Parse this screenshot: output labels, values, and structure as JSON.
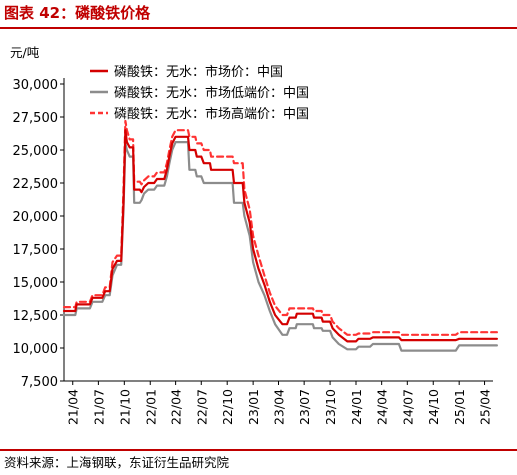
{
  "figure": {
    "title": "图表 42：磷酸铁价格",
    "source": "资料来源：上海钢联，东证衍生品研究院"
  },
  "chart_data": {
    "type": "line",
    "title": "",
    "ylabel": "元/吨",
    "xlabel": "",
    "ylim": [
      7500,
      30000
    ],
    "yticks": [
      7500,
      10000,
      12500,
      15000,
      17500,
      20000,
      22500,
      25000,
      27500,
      30000
    ],
    "ytick_labels": [
      "7,500",
      "10,000",
      "12,500",
      "15,000",
      "17,500",
      "20,000",
      "22,500",
      "25,000",
      "27,500",
      "30,000"
    ],
    "xticks": [
      "21/04",
      "21/07",
      "21/10",
      "22/01",
      "22/04",
      "22/07",
      "22/10",
      "23/01",
      "23/04",
      "23/07",
      "23/10",
      "24/01",
      "24/04",
      "24/07",
      "24/10",
      "25/01",
      "25/04"
    ],
    "x_start": "21/03",
    "x_end": "25/05",
    "legend_position": "top",
    "grid": false,
    "colors": {
      "main": "#d40000",
      "low": "#8c8c8c",
      "high": "#ff3333",
      "title": "#c00000"
    },
    "series": [
      {
        "name": "磷酸铁：无水：市场价：中国",
        "style": "solid",
        "color": "#d40000",
        "points": [
          [
            "2021-03-01",
            12800
          ],
          [
            "2021-04-10",
            12800
          ],
          [
            "2021-04-15",
            13300
          ],
          [
            "2021-06-01",
            13300
          ],
          [
            "2021-06-10",
            13800
          ],
          [
            "2021-07-15",
            13800
          ],
          [
            "2021-07-25",
            14300
          ],
          [
            "2021-08-10",
            14300
          ],
          [
            "2021-08-20",
            16000
          ],
          [
            "2021-09-05",
            16600
          ],
          [
            "2021-09-20",
            16600
          ],
          [
            "2021-09-28",
            21000
          ],
          [
            "2021-10-05",
            26500
          ],
          [
            "2021-10-10",
            25600
          ],
          [
            "2021-10-20",
            25200
          ],
          [
            "2021-11-01",
            25200
          ],
          [
            "2021-11-05",
            22000
          ],
          [
            "2021-11-25",
            22000
          ],
          [
            "2021-12-01",
            21800
          ],
          [
            "2021-12-10",
            22200
          ],
          [
            "2021-12-25",
            22500
          ],
          [
            "2022-01-15",
            22500
          ],
          [
            "2022-01-25",
            22800
          ],
          [
            "2022-02-20",
            22800
          ],
          [
            "2022-03-01",
            23500
          ],
          [
            "2022-03-10",
            24500
          ],
          [
            "2022-03-20",
            25500
          ],
          [
            "2022-04-01",
            26000
          ],
          [
            "2022-05-15",
            26000
          ],
          [
            "2022-05-20",
            25000
          ],
          [
            "2022-06-10",
            25000
          ],
          [
            "2022-06-15",
            24500
          ],
          [
            "2022-07-01",
            24500
          ],
          [
            "2022-07-10",
            24000
          ],
          [
            "2022-08-01",
            24000
          ],
          [
            "2022-08-05",
            23500
          ],
          [
            "2022-10-20",
            23500
          ],
          [
            "2022-10-25",
            22500
          ],
          [
            "2022-11-25",
            22500
          ],
          [
            "2022-12-01",
            21000
          ],
          [
            "2022-12-20",
            19500
          ],
          [
            "2023-01-01",
            17500
          ],
          [
            "2023-01-20",
            16000
          ],
          [
            "2023-02-10",
            14800
          ],
          [
            "2023-03-01",
            13500
          ],
          [
            "2023-03-20",
            12500
          ],
          [
            "2023-04-15",
            11800
          ],
          [
            "2023-05-01",
            11800
          ],
          [
            "2023-05-10",
            12300
          ],
          [
            "2023-06-01",
            12300
          ],
          [
            "2023-06-05",
            12600
          ],
          [
            "2023-08-01",
            12600
          ],
          [
            "2023-08-05",
            12300
          ],
          [
            "2023-09-01",
            12300
          ],
          [
            "2023-09-05",
            12000
          ],
          [
            "2023-10-01",
            12000
          ],
          [
            "2023-10-10",
            11500
          ],
          [
            "2023-11-01",
            11000
          ],
          [
            "2023-12-01",
            10500
          ],
          [
            "2024-01-01",
            10500
          ],
          [
            "2024-01-10",
            10700
          ],
          [
            "2024-02-20",
            10700
          ],
          [
            "2024-03-01",
            10800
          ],
          [
            "2024-06-01",
            10800
          ],
          [
            "2024-06-10",
            10600
          ],
          [
            "2024-12-20",
            10600
          ],
          [
            "2025-01-01",
            10700
          ],
          [
            "2025-05-15",
            10700
          ]
        ]
      },
      {
        "name": "磷酸铁：无水：市场低端价：中国",
        "style": "solid",
        "color": "#8c8c8c",
        "points": [
          [
            "2021-03-01",
            12500
          ],
          [
            "2021-04-10",
            12500
          ],
          [
            "2021-04-15",
            13000
          ],
          [
            "2021-06-01",
            13000
          ],
          [
            "2021-06-10",
            13500
          ],
          [
            "2021-07-15",
            13500
          ],
          [
            "2021-07-25",
            14000
          ],
          [
            "2021-08-10",
            14000
          ],
          [
            "2021-08-20",
            15500
          ],
          [
            "2021-09-05",
            16300
          ],
          [
            "2021-09-20",
            16300
          ],
          [
            "2021-09-28",
            20500
          ],
          [
            "2021-10-05",
            25500
          ],
          [
            "2021-10-10",
            25000
          ],
          [
            "2021-10-20",
            24500
          ],
          [
            "2021-11-01",
            24500
          ],
          [
            "2021-11-05",
            21000
          ],
          [
            "2021-11-25",
            21000
          ],
          [
            "2021-12-01",
            21200
          ],
          [
            "2021-12-10",
            21700
          ],
          [
            "2021-12-25",
            22000
          ],
          [
            "2022-01-15",
            22000
          ],
          [
            "2022-01-25",
            22300
          ],
          [
            "2022-02-20",
            22300
          ],
          [
            "2022-03-01",
            23000
          ],
          [
            "2022-03-10",
            24000
          ],
          [
            "2022-03-20",
            25000
          ],
          [
            "2022-04-01",
            25600
          ],
          [
            "2022-05-15",
            25600
          ],
          [
            "2022-05-20",
            23500
          ],
          [
            "2022-06-10",
            23500
          ],
          [
            "2022-06-15",
            23000
          ],
          [
            "2022-07-01",
            23000
          ],
          [
            "2022-07-10",
            22500
          ],
          [
            "2022-08-01",
            22500
          ],
          [
            "2022-08-05",
            22500
          ],
          [
            "2022-10-20",
            22500
          ],
          [
            "2022-10-25",
            21000
          ],
          [
            "2022-11-25",
            21000
          ],
          [
            "2022-12-01",
            20000
          ],
          [
            "2022-12-20",
            18500
          ],
          [
            "2023-01-01",
            16500
          ],
          [
            "2023-01-20",
            15000
          ],
          [
            "2023-02-10",
            14000
          ],
          [
            "2023-03-01",
            12800
          ],
          [
            "2023-03-20",
            11800
          ],
          [
            "2023-04-15",
            11000
          ],
          [
            "2023-05-01",
            11000
          ],
          [
            "2023-05-10",
            11500
          ],
          [
            "2023-06-01",
            11500
          ],
          [
            "2023-06-05",
            11800
          ],
          [
            "2023-08-01",
            11800
          ],
          [
            "2023-08-05",
            11500
          ],
          [
            "2023-09-01",
            11500
          ],
          [
            "2023-09-05",
            11300
          ],
          [
            "2023-10-01",
            11300
          ],
          [
            "2023-10-10",
            10800
          ],
          [
            "2023-11-01",
            10300
          ],
          [
            "2023-12-01",
            9900
          ],
          [
            "2024-01-01",
            9900
          ],
          [
            "2024-01-10",
            10100
          ],
          [
            "2024-02-20",
            10100
          ],
          [
            "2024-03-01",
            10300
          ],
          [
            "2024-06-01",
            10300
          ],
          [
            "2024-06-10",
            9800
          ],
          [
            "2024-12-20",
            9800
          ],
          [
            "2025-01-01",
            10200
          ],
          [
            "2025-05-15",
            10200
          ]
        ]
      },
      {
        "name": "磷酸铁：无水：市场高端价：中国",
        "style": "dashed",
        "color": "#ff3333",
        "points": [
          [
            "2021-03-01",
            13100
          ],
          [
            "2021-04-10",
            13100
          ],
          [
            "2021-04-15",
            13500
          ],
          [
            "2021-06-01",
            13500
          ],
          [
            "2021-06-10",
            14000
          ],
          [
            "2021-07-15",
            14000
          ],
          [
            "2021-07-25",
            14600
          ],
          [
            "2021-08-10",
            14600
          ],
          [
            "2021-08-20",
            16500
          ],
          [
            "2021-09-05",
            17000
          ],
          [
            "2021-09-20",
            17000
          ],
          [
            "2021-09-28",
            22000
          ],
          [
            "2021-10-05",
            27200
          ],
          [
            "2021-10-10",
            26500
          ],
          [
            "2021-10-20",
            25800
          ],
          [
            "2021-11-01",
            25800
          ],
          [
            "2021-11-05",
            22600
          ],
          [
            "2021-11-25",
            22600
          ],
          [
            "2021-12-01",
            22400
          ],
          [
            "2021-12-10",
            22700
          ],
          [
            "2021-12-25",
            23000
          ],
          [
            "2022-01-15",
            23000
          ],
          [
            "2022-01-25",
            23300
          ],
          [
            "2022-02-20",
            23300
          ],
          [
            "2022-03-01",
            24000
          ],
          [
            "2022-03-10",
            25000
          ],
          [
            "2022-03-20",
            26000
          ],
          [
            "2022-04-01",
            26500
          ],
          [
            "2022-05-15",
            26500
          ],
          [
            "2022-05-20",
            26000
          ],
          [
            "2022-06-10",
            26000
          ],
          [
            "2022-06-15",
            25500
          ],
          [
            "2022-07-01",
            25500
          ],
          [
            "2022-07-10",
            25000
          ],
          [
            "2022-08-01",
            25000
          ],
          [
            "2022-08-05",
            24500
          ],
          [
            "2022-10-20",
            24500
          ],
          [
            "2022-10-25",
            24000
          ],
          [
            "2022-11-25",
            24000
          ],
          [
            "2022-12-01",
            22000
          ],
          [
            "2022-12-20",
            20500
          ],
          [
            "2023-01-01",
            18500
          ],
          [
            "2023-01-20",
            17000
          ],
          [
            "2023-02-10",
            15500
          ],
          [
            "2023-03-01",
            14200
          ],
          [
            "2023-03-20",
            13200
          ],
          [
            "2023-04-15",
            12500
          ],
          [
            "2023-05-01",
            12500
          ],
          [
            "2023-05-10",
            13000
          ],
          [
            "2023-06-01",
            13000
          ],
          [
            "2023-06-05",
            13000
          ],
          [
            "2023-08-01",
            13000
          ],
          [
            "2023-08-05",
            12800
          ],
          [
            "2023-09-01",
            12800
          ],
          [
            "2023-09-05",
            12500
          ],
          [
            "2023-10-01",
            12500
          ],
          [
            "2023-10-10",
            12000
          ],
          [
            "2023-11-01",
            11500
          ],
          [
            "2023-12-01",
            11000
          ],
          [
            "2024-01-01",
            11000
          ],
          [
            "2024-01-10",
            11100
          ],
          [
            "2024-02-20",
            11100
          ],
          [
            "2024-03-01",
            11200
          ],
          [
            "2024-06-01",
            11200
          ],
          [
            "2024-06-10",
            11000
          ],
          [
            "2024-12-20",
            11000
          ],
          [
            "2025-01-01",
            11200
          ],
          [
            "2025-05-15",
            11200
          ]
        ]
      }
    ]
  }
}
